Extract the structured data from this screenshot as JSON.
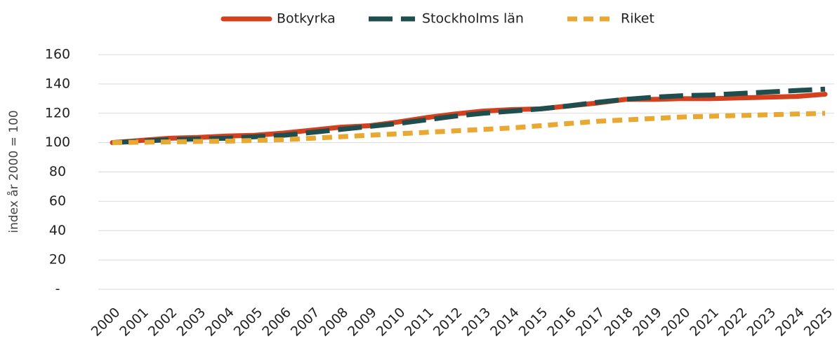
{
  "chart_data": {
    "type": "line",
    "y_label": "index år 2000 = 100",
    "categories": [
      "2000",
      "2001",
      "2002",
      "2003",
      "2004",
      "2005",
      "2006",
      "2007",
      "2008",
      "2009",
      "2010",
      "2011",
      "2012",
      "2013",
      "2014",
      "2015",
      "2016",
      "2017",
      "2018",
      "2019",
      "2020",
      "2021",
      "2022",
      "2023",
      "2024",
      "2025"
    ],
    "series": [
      {
        "name": "Botkyrka",
        "color": "#d4411e",
        "dash": "solid",
        "values": [
          100,
          101.5,
          103,
          103.5,
          104.5,
          105,
          106.5,
          108.5,
          110.5,
          111.5,
          114,
          117,
          119.5,
          121.5,
          122.5,
          123,
          125,
          127,
          129.5,
          129.5,
          130,
          130,
          130.5,
          131,
          131.5,
          133
        ]
      },
      {
        "name": "Stockholms län",
        "color": "#1f4e4f",
        "dash": "long",
        "values": [
          100,
          101,
          102,
          102.5,
          103,
          104,
          105,
          107,
          109,
          111,
          113,
          115.5,
          118,
          120,
          121.5,
          123,
          125,
          127.5,
          129.5,
          131,
          132,
          132.5,
          133.5,
          134.5,
          135.5,
          136.5
        ]
      },
      {
        "name": "Riket",
        "color": "#e8a832",
        "dash": "short",
        "values": [
          100,
          100.3,
          100.5,
          100.8,
          101,
          101.5,
          102,
          103,
          104,
          105,
          106,
          107,
          108,
          109,
          110,
          111.5,
          113,
          114.5,
          115.5,
          116.5,
          117.5,
          118,
          118.5,
          119,
          119.5,
          120
        ]
      }
    ],
    "ylim": [
      0,
      160
    ],
    "yticks": [
      {
        "value": 0,
        "label": "-"
      },
      20,
      40,
      60,
      80,
      100,
      120,
      140,
      160
    ],
    "grid": true,
    "legend": "top"
  }
}
